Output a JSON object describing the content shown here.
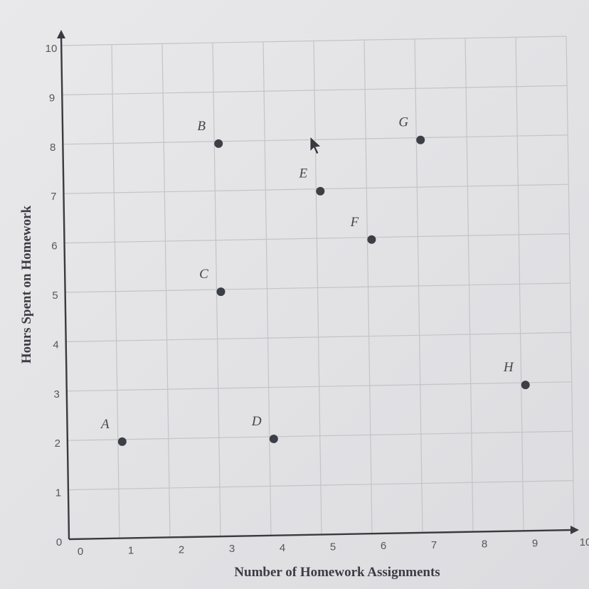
{
  "chart_data": {
    "type": "scatter",
    "title": "",
    "xlabel": "Number of Homework Assignments",
    "ylabel": "Hours Spent on Homework",
    "xlim": [
      0,
      10
    ],
    "ylim": [
      0,
      10
    ],
    "x_ticks": [
      "0",
      "1",
      "2",
      "3",
      "4",
      "5",
      "6",
      "7",
      "8",
      "9",
      "10"
    ],
    "y_ticks": [
      "0",
      "1",
      "2",
      "3",
      "4",
      "5",
      "6",
      "7",
      "8",
      "9",
      "10"
    ],
    "grid": true,
    "points": [
      {
        "label": "A",
        "x": 1,
        "y": 2
      },
      {
        "label": "B",
        "x": 3,
        "y": 8
      },
      {
        "label": "C",
        "x": 3,
        "y": 5
      },
      {
        "label": "D",
        "x": 4,
        "y": 2
      },
      {
        "label": "E",
        "x": 5,
        "y": 7
      },
      {
        "label": "F",
        "x": 6,
        "y": 6
      },
      {
        "label": "G",
        "x": 7,
        "y": 8
      },
      {
        "label": "H",
        "x": 9,
        "y": 3
      }
    ],
    "colors": {
      "point": "#3c3f45",
      "axis": "#3a3a40",
      "grid": "#c4c4c8"
    }
  }
}
